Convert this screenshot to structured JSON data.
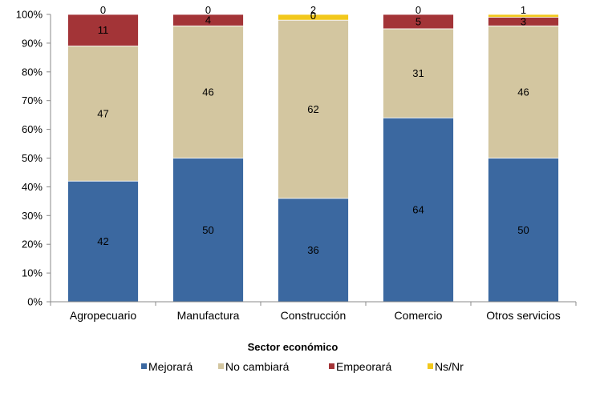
{
  "chart_data": {
    "type": "bar",
    "stacked": true,
    "percent": true,
    "categories": [
      "Agropecuario",
      "Manufactura",
      "Construcción",
      "Comercio",
      "Otros servicios"
    ],
    "series": [
      {
        "name": "Mejorará",
        "values": [
          42,
          50,
          36,
          64,
          50
        ],
        "color": "#3B68A0"
      },
      {
        "name": "No cambiará",
        "values": [
          47,
          46,
          62,
          31,
          46
        ],
        "color": "#D3C6A0"
      },
      {
        "name": "Empeorará",
        "values": [
          11,
          4,
          0,
          5,
          3
        ],
        "color": "#A33437"
      },
      {
        "name": "Ns/Nr",
        "values": [
          0,
          0,
          2,
          0,
          1
        ],
        "color": "#F2C81C"
      }
    ],
    "xlabel": "Sector económico",
    "ylabel": "",
    "ylim": [
      0,
      100
    ],
    "yticks": [
      "0%",
      "10%",
      "20%",
      "30%",
      "40%",
      "50%",
      "60%",
      "70%",
      "80%",
      "90%",
      "100%"
    ],
    "grid": false,
    "legend": "bottom"
  }
}
